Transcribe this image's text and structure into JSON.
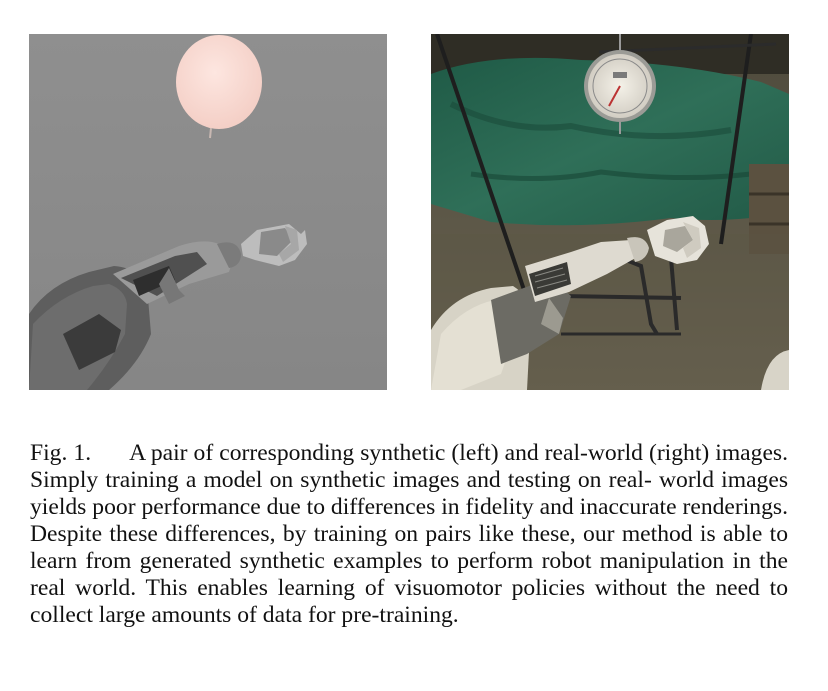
{
  "figure": {
    "left_image": "synthetic rendering: robot arm with gripper and pink balloon on gray background",
    "right_image": "real-world photo: robot arm with gripper, dial scale over green cloth"
  },
  "caption": {
    "label": "Fig. 1.",
    "text_lines": [
      "A pair of corresponding synthetic (left) and real-world (right)",
      "images. Simply training a model on synthetic images and testing on real-",
      "world images yields poor performance due to differences in fidelity and",
      "inaccurate renderings. Despite these differences, by training on pairs like",
      "these, our method is able to learn from generated synthetic examples to",
      "perform robot manipulation in the real world. This enables learning of",
      "visuomotor policies without the need to collect large amounts of data for",
      "pre-training."
    ]
  }
}
